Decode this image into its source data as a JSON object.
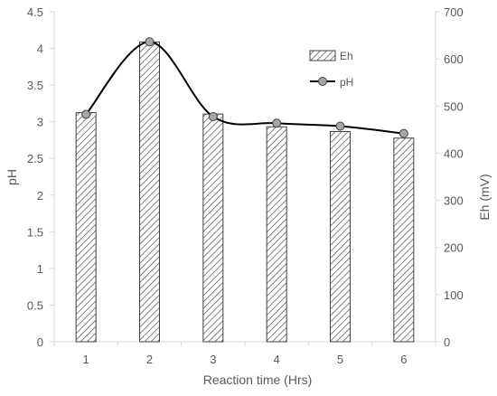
{
  "chart_data": {
    "type": "bar",
    "title": "",
    "xlabel": "Reaction time (Hrs)",
    "ylabel": "pH",
    "y2label": "Eh (mV)",
    "categories": [
      "1",
      "2",
      "3",
      "4",
      "5",
      "6"
    ],
    "series": [
      {
        "name": "Eh",
        "type": "bar",
        "axis": "right",
        "pattern": "diagonal-hatch",
        "values": [
          486,
          636,
          483,
          456,
          446,
          432
        ]
      },
      {
        "name": "pH",
        "type": "line",
        "axis": "left",
        "smooth": true,
        "marker": "circle",
        "values": [
          3.1,
          4.09,
          3.07,
          2.98,
          2.94,
          2.84
        ]
      }
    ],
    "ylim": [
      0,
      4.5
    ],
    "yticks": [
      "0",
      "0.5",
      "1",
      "1.5",
      "2",
      "2.5",
      "3",
      "3.5",
      "4",
      "4.5"
    ],
    "y2lim": [
      0,
      700
    ],
    "y2ticks": [
      "0",
      "100",
      "200",
      "300",
      "400",
      "500",
      "600",
      "700"
    ],
    "grid": false,
    "legend_position": "top-right",
    "colors": {
      "line": "#000000",
      "marker_fill": "#a6a6a6",
      "bar_stroke": "#404040",
      "axis": "#d9d9d9",
      "text": "#595959"
    }
  }
}
